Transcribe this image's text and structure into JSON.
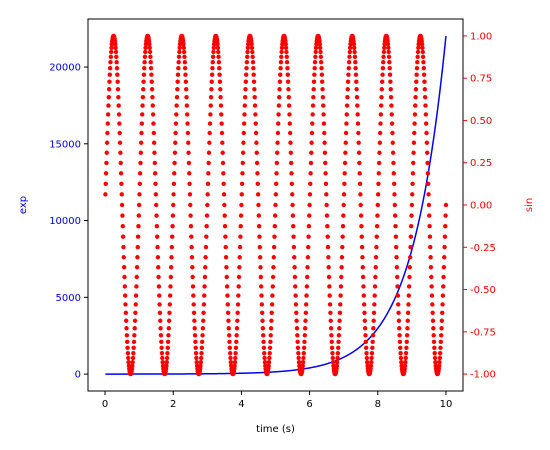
{
  "chart_data": {
    "type": "line",
    "title": "",
    "xlabel": "time (s)",
    "xlim": [
      -0.5,
      10.5
    ],
    "xticks": [
      0,
      2,
      4,
      6,
      8,
      10
    ],
    "grid": false,
    "y_left": {
      "label": "exp",
      "color": "#0000ff",
      "lim": [
        -1101,
        23128
      ],
      "ticks": [
        0,
        5000,
        10000,
        15000,
        20000
      ]
    },
    "y_right": {
      "label": "sin",
      "color": "#ff0000",
      "lim": [
        -1.1,
        1.1
      ],
      "ticks": [
        -1.0,
        -0.75,
        -0.5,
        -0.25,
        0.0,
        0.25,
        0.5,
        0.75,
        1.0
      ]
    },
    "series": [
      {
        "axis": "left",
        "style": "line",
        "color": "#0000ff",
        "function": "exp(t)",
        "t_start": 0.01,
        "t_end": 10.0,
        "t_step": 0.01,
        "x": [
          0,
          1,
          2,
          3,
          4,
          5,
          6,
          7,
          8,
          8.5,
          9,
          9.5,
          10
        ],
        "y": [
          1,
          2.7,
          7.4,
          20,
          55,
          148,
          403,
          1097,
          2981,
          4915,
          8103,
          13360,
          22026
        ]
      },
      {
        "axis": "right",
        "style": "points",
        "color": "#ff0000",
        "function": "sin(2*pi*t)",
        "t_start": 0.01,
        "t_end": 10.0,
        "t_step": 0.01,
        "period": 1.0,
        "x": [
          0,
          0.25,
          0.5,
          0.75,
          1.0
        ],
        "y": [
          0,
          1,
          0,
          -1,
          0
        ]
      }
    ]
  }
}
